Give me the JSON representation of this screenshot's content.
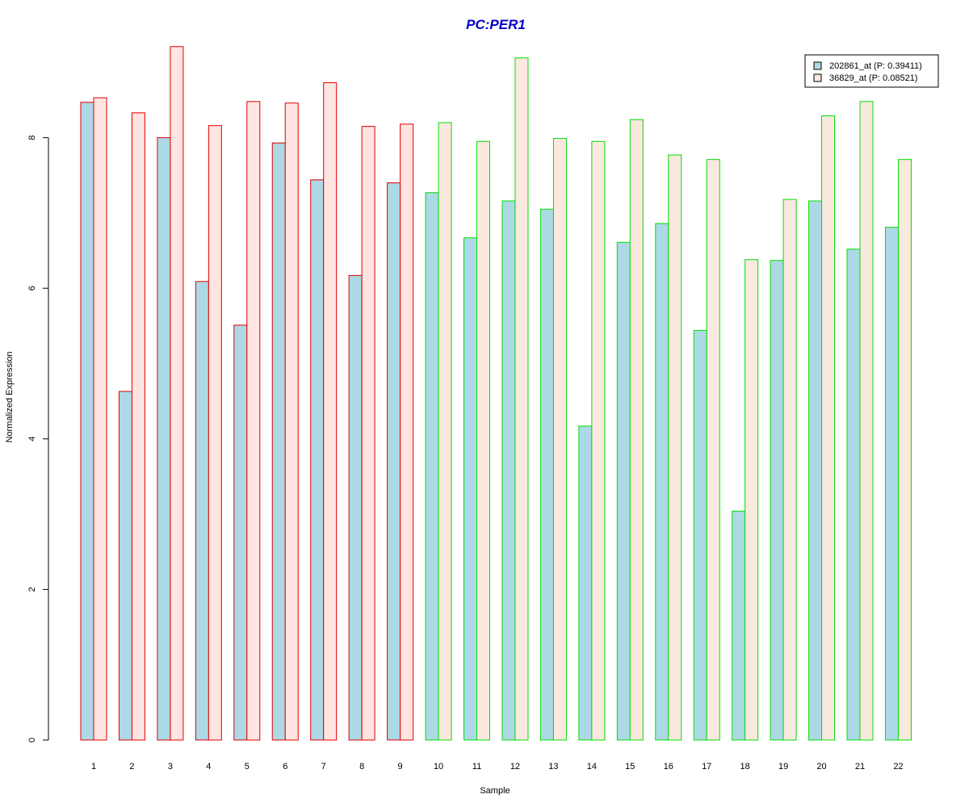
{
  "chart_data": {
    "type": "bar",
    "title": "PC:PER1",
    "xlabel": "Sample",
    "ylabel": "Normalized Expression",
    "ylim": [
      0,
      9.3
    ],
    "yticks": [
      0,
      2,
      4,
      6,
      8
    ],
    "categories": [
      "1",
      "2",
      "3",
      "4",
      "5",
      "6",
      "7",
      "8",
      "9",
      "10",
      "11",
      "12",
      "13",
      "14",
      "15",
      "16",
      "17",
      "18",
      "19",
      "20",
      "21",
      "22"
    ],
    "series": [
      {
        "name": "202861_at (P: 0.39411)",
        "fill": "#add8e6",
        "values": [
          8.47,
          4.63,
          8.0,
          6.09,
          5.51,
          7.93,
          7.44,
          6.17,
          7.4,
          7.27,
          6.67,
          7.16,
          7.05,
          4.17,
          6.61,
          6.86,
          5.44,
          3.04,
          6.37,
          7.16,
          6.52,
          6.81
        ]
      },
      {
        "name": "36829_at (P: 0.08521)",
        "fill_group1": "#ffe4e1",
        "fill_group2": "#fbe8df",
        "values": [
          8.53,
          8.33,
          9.21,
          8.16,
          8.48,
          8.46,
          8.73,
          8.15,
          8.18,
          8.2,
          7.95,
          9.06,
          7.99,
          7.95,
          8.24,
          7.77,
          7.71,
          6.38,
          7.18,
          8.29,
          8.48,
          7.71
        ]
      }
    ],
    "groups": [
      {
        "samples": 9,
        "border": "#e00000"
      },
      {
        "samples": 13,
        "border": "#00e000"
      }
    ],
    "legend_position": "top-right",
    "title_color": "#0000cc"
  }
}
